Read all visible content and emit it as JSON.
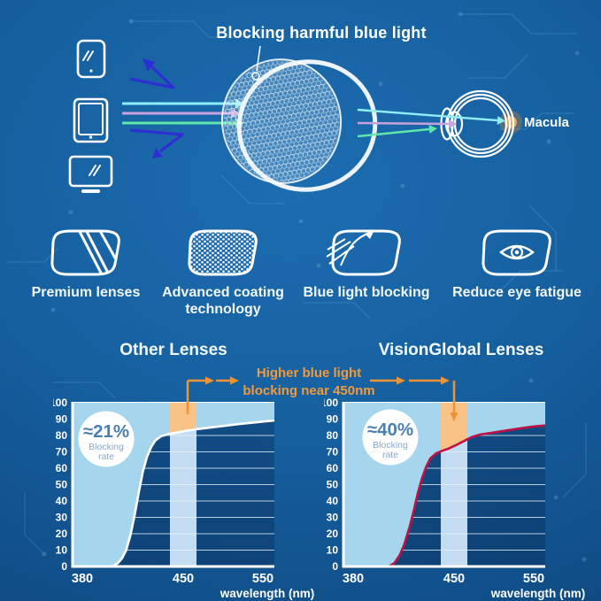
{
  "hero": {
    "title": "Blocking harmful blue light",
    "macula_label": "Macula",
    "device_icons": [
      "smartphone",
      "tablet",
      "monitor"
    ],
    "ray_colors": {
      "cyan": "#8deef8",
      "purple": "#c9a2dd",
      "green": "#5fe6ab",
      "blocked_blue": "#2e2fd2"
    }
  },
  "features": [
    {
      "icon": "premium-lenses-icon",
      "label": "Premium lenses"
    },
    {
      "icon": "coating-technology-icon",
      "label": "Advanced coating technology"
    },
    {
      "icon": "blue-light-blocking-icon",
      "label": "Blue light blocking"
    },
    {
      "icon": "reduce-eye-fatigue-icon",
      "label": "Reduce eye fatigue"
    }
  ],
  "annotation": {
    "line1": "Higher blue light",
    "line2": "blocking near 450nm",
    "color": "#f09a3e"
  },
  "colors": {
    "area_fill": "#a5d6ee",
    "band_fill": "#c3dcf2",
    "band_top_fill": "#f9c287",
    "accent_orange": "#ee9435",
    "grid": "#e4f0f8",
    "axis": "#ffffff",
    "badge_value_text": "#4a7fb2",
    "badge_sub_text": "#87a9cb"
  },
  "chart_data": [
    {
      "type": "area",
      "title": "Other Lenses",
      "xlabel": "wavelength (nm)",
      "x_ticks": [
        380,
        450,
        550
      ],
      "y_ticks": [
        0,
        10,
        20,
        30,
        40,
        50,
        60,
        70,
        80,
        90,
        100
      ],
      "ylim": [
        0,
        100
      ],
      "xlim": [
        380,
        560
      ],
      "highlight_band_nm": 450,
      "badge": {
        "value": "≈21%",
        "label": "Blocking rate"
      },
      "curve_color": "#ffffff",
      "series": [
        {
          "name": "blocking rate (%)",
          "points": [
            [
              380,
              0
            ],
            [
              399,
              0
            ],
            [
              403,
              2
            ],
            [
              406,
              5
            ],
            [
              409,
              10
            ],
            [
              412,
              19
            ],
            [
              415,
              31
            ],
            [
              418,
              45
            ],
            [
              421,
              58
            ],
            [
              424,
              67
            ],
            [
              427,
              73
            ],
            [
              430,
              77
            ],
            [
              434,
              79.5
            ],
            [
              440,
              81
            ],
            [
              447,
              82
            ],
            [
              455,
              83
            ],
            [
              470,
              84
            ],
            [
              495,
              85.5
            ],
            [
              520,
              87
            ],
            [
              550,
              88.5
            ]
          ]
        }
      ]
    },
    {
      "type": "area",
      "title": "VisionGlobal Lenses",
      "xlabel": "wavelength (nm)",
      "x_ticks": [
        380,
        450,
        550
      ],
      "y_ticks": [
        0,
        10,
        20,
        30,
        40,
        50,
        60,
        70,
        80,
        90,
        100
      ],
      "ylim": [
        0,
        100
      ],
      "xlim": [
        380,
        560
      ],
      "highlight_band_nm": 450,
      "badge": {
        "value": "≈40%",
        "label": "Blocking rate"
      },
      "curve_color": "#bf1145",
      "series": [
        {
          "name": "blocking rate (%)",
          "points": [
            [
              380,
              0
            ],
            [
              403,
              0
            ],
            [
              407,
              2
            ],
            [
              411,
              7
            ],
            [
              414,
              13
            ],
            [
              418,
              24
            ],
            [
              421,
              34
            ],
            [
              424,
              45
            ],
            [
              427,
              54
            ],
            [
              430,
              61
            ],
            [
              433,
              66
            ],
            [
              437,
              69
            ],
            [
              441,
              70.5
            ],
            [
              446,
              72
            ],
            [
              452,
              74
            ],
            [
              458,
              75.5
            ],
            [
              464,
              77
            ],
            [
              472,
              79
            ],
            [
              482,
              80.5
            ],
            [
              495,
              81.5
            ],
            [
              515,
              83
            ],
            [
              535,
              84.5
            ],
            [
              550,
              85.5
            ]
          ]
        }
      ]
    }
  ]
}
